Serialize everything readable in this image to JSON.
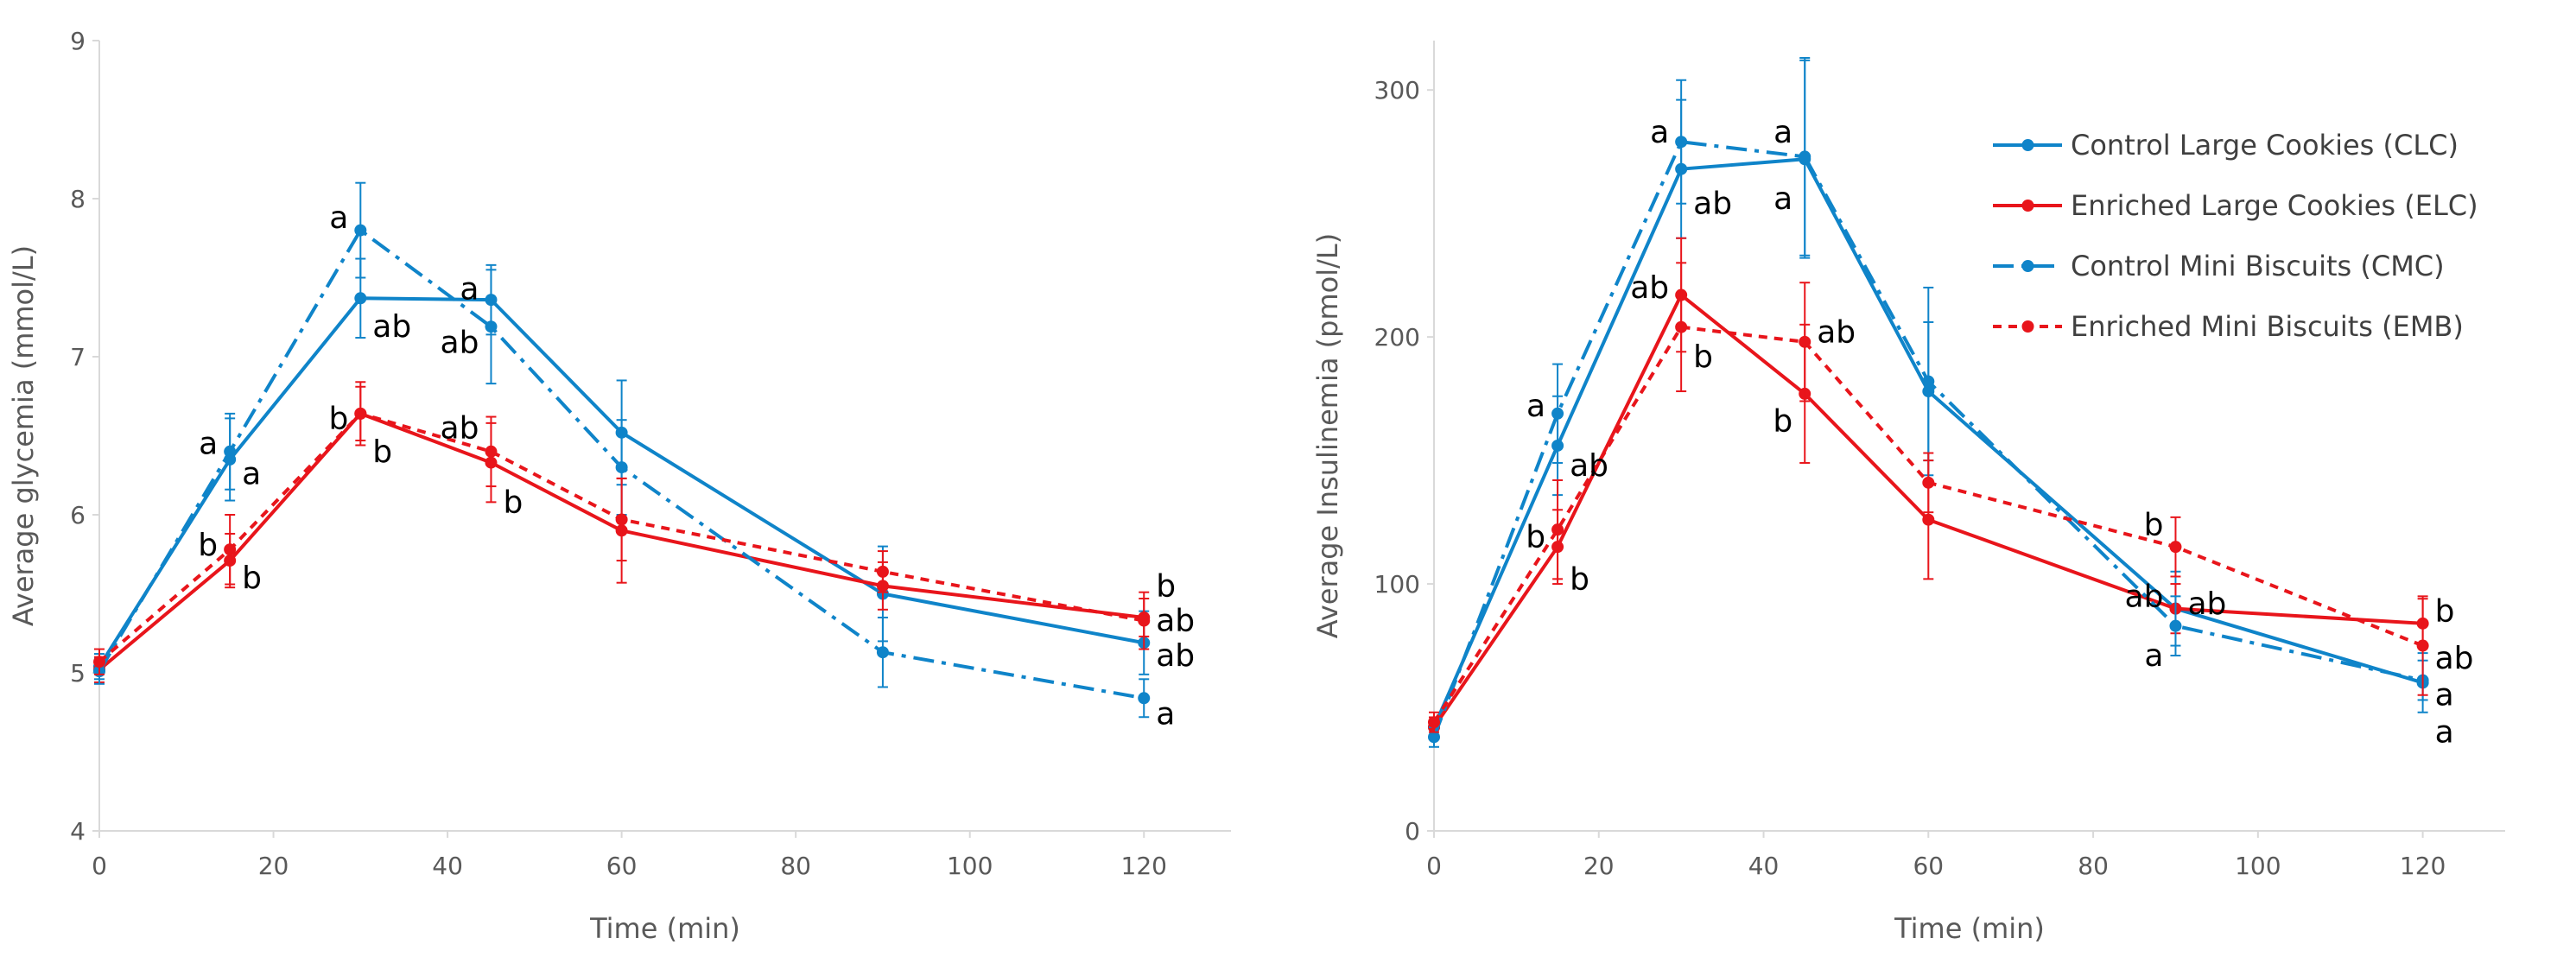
{
  "chart_data": [
    {
      "type": "line",
      "title": "",
      "xlabel": "Time (min)",
      "ylabel": "Average glycemia (mmol/L)",
      "xlim": [
        0,
        130
      ],
      "ylim": [
        4,
        9
      ],
      "x_ticks": [
        0,
        20,
        40,
        60,
        80,
        100,
        120
      ],
      "y_ticks": [
        4,
        5,
        6,
        7,
        8,
        9
      ],
      "grid": false,
      "x": [
        0,
        15,
        30,
        45,
        60,
        90,
        120
      ],
      "series": [
        {
          "name": "Control Large Cookies (CLC)",
          "color": "#0f84c9",
          "style": "solid",
          "values": [
            5.04,
            6.35,
            7.37,
            7.36,
            6.52,
            5.5,
            5.19
          ],
          "errors": [
            0.08,
            0.26,
            0.25,
            0.22,
            0.33,
            0.3,
            0.2
          ]
        },
        {
          "name": "Enriched Large Cookies (ELC)",
          "color": "#e8151b",
          "style": "solid",
          "values": [
            5.02,
            5.71,
            6.64,
            6.33,
            5.9,
            5.55,
            5.35
          ],
          "errors": [
            0.08,
            0.17,
            0.17,
            0.25,
            0.33,
            0.15,
            0.12
          ]
        },
        {
          "name": "Control Mini Biscuits (CMC)",
          "color": "#0f84c9",
          "style": "dashdot",
          "values": [
            5.01,
            6.4,
            7.8,
            7.19,
            6.3,
            5.13,
            4.84
          ],
          "errors": [
            0.08,
            0.24,
            0.3,
            0.36,
            0.3,
            0.22,
            0.12
          ]
        },
        {
          "name": "Enriched Mini Biscuits (EMB)",
          "color": "#e8151b",
          "style": "dotted",
          "values": [
            5.07,
            5.78,
            6.64,
            6.4,
            5.97,
            5.64,
            5.33
          ],
          "errors": [
            0.08,
            0.22,
            0.2,
            0.22,
            0.26,
            0.13,
            0.18
          ]
        }
      ],
      "annotations": [
        {
          "x": 15,
          "y": 6.45,
          "text": "a",
          "side": "left"
        },
        {
          "x": 15,
          "y": 6.26,
          "text": "a",
          "side": "right"
        },
        {
          "x": 15,
          "y": 5.81,
          "text": "b",
          "side": "left"
        },
        {
          "x": 15,
          "y": 5.6,
          "text": "b",
          "side": "right"
        },
        {
          "x": 30,
          "y": 7.88,
          "text": "a",
          "side": "left"
        },
        {
          "x": 30,
          "y": 7.19,
          "text": "ab",
          "side": "right"
        },
        {
          "x": 30,
          "y": 6.61,
          "text": "b",
          "side": "left"
        },
        {
          "x": 30,
          "y": 6.4,
          "text": "b",
          "side": "right"
        },
        {
          "x": 45,
          "y": 7.43,
          "text": "a",
          "side": "left"
        },
        {
          "x": 45,
          "y": 7.09,
          "text": "ab",
          "side": "left"
        },
        {
          "x": 45,
          "y": 6.55,
          "text": "ab",
          "side": "left"
        },
        {
          "x": 45,
          "y": 6.08,
          "text": "b",
          "side": "right"
        },
        {
          "x": 120,
          "y": 5.55,
          "text": "b",
          "side": "right"
        },
        {
          "x": 120,
          "y": 5.33,
          "text": "ab",
          "side": "right"
        },
        {
          "x": 120,
          "y": 5.11,
          "text": "ab",
          "side": "right"
        },
        {
          "x": 120,
          "y": 4.74,
          "text": "a",
          "side": "right"
        }
      ]
    },
    {
      "type": "line",
      "title": "",
      "xlabel": "Time (min)",
      "ylabel": "Average Insulinemia (pmol/L)",
      "xlim": [
        0,
        130
      ],
      "ylim": [
        0,
        320
      ],
      "x_ticks": [
        0,
        20,
        40,
        60,
        80,
        100,
        120
      ],
      "y_ticks": [
        0,
        100,
        200,
        300
      ],
      "grid": false,
      "legend": "top-right",
      "x": [
        0,
        15,
        30,
        45,
        60,
        90,
        120
      ],
      "series": [
        {
          "name": "Control Large Cookies (CLC)",
          "color": "#0f84c9",
          "style": "solid",
          "values": [
            42,
            156,
            268,
            272,
            178,
            90,
            60
          ],
          "errors": [
            4,
            20,
            28,
            40,
            28,
            15,
            12
          ]
        },
        {
          "name": "Enriched Large Cookies (ELC)",
          "color": "#e8151b",
          "style": "solid",
          "values": [
            42,
            115,
            217,
            177,
            126,
            90,
            84
          ],
          "errors": [
            4,
            15,
            23,
            28,
            24,
            10,
            10
          ]
        },
        {
          "name": "Control Mini Biscuits (CMC)",
          "color": "#0f84c9",
          "style": "dashdot",
          "values": [
            38,
            169,
            279,
            273,
            182,
            83,
            61
          ],
          "errors": [
            4,
            20,
            25,
            40,
            38,
            12,
            8
          ]
        },
        {
          "name": "Enriched Mini Biscuits (EMB)",
          "color": "#e8151b",
          "style": "dotted",
          "values": [
            44,
            122,
            204,
            198,
            141,
            115,
            75
          ],
          "errors": [
            4,
            20,
            26,
            24,
            12,
            12,
            20
          ]
        }
      ],
      "annotations": [
        {
          "x": 15,
          "y": 172,
          "text": "a",
          "side": "left"
        },
        {
          "x": 15,
          "y": 148,
          "text": "ab",
          "side": "right"
        },
        {
          "x": 15,
          "y": 119,
          "text": "b",
          "side": "left"
        },
        {
          "x": 15,
          "y": 102,
          "text": "b",
          "side": "right"
        },
        {
          "x": 30,
          "y": 283,
          "text": "a",
          "side": "left"
        },
        {
          "x": 30,
          "y": 254,
          "text": "ab",
          "side": "right"
        },
        {
          "x": 30,
          "y": 220,
          "text": "ab",
          "side": "left"
        },
        {
          "x": 30,
          "y": 192,
          "text": "b",
          "side": "right"
        },
        {
          "x": 45,
          "y": 283,
          "text": "a",
          "side": "left"
        },
        {
          "x": 45,
          "y": 256,
          "text": "a",
          "side": "left"
        },
        {
          "x": 45,
          "y": 202,
          "text": "ab",
          "side": "right"
        },
        {
          "x": 45,
          "y": 166,
          "text": "b",
          "side": "left"
        },
        {
          "x": 90,
          "y": 124,
          "text": "b",
          "side": "left"
        },
        {
          "x": 90,
          "y": 95,
          "text": "ab",
          "side": "left"
        },
        {
          "x": 90,
          "y": 92,
          "text": "ab",
          "side": "right"
        },
        {
          "x": 90,
          "y": 71,
          "text": "a",
          "side": "left"
        },
        {
          "x": 120,
          "y": 89,
          "text": "b",
          "side": "right"
        },
        {
          "x": 120,
          "y": 70,
          "text": "ab",
          "side": "right"
        },
        {
          "x": 120,
          "y": 55,
          "text": "a",
          "side": "right"
        },
        {
          "x": 120,
          "y": 40,
          "text": "a",
          "side": "right"
        }
      ]
    }
  ]
}
